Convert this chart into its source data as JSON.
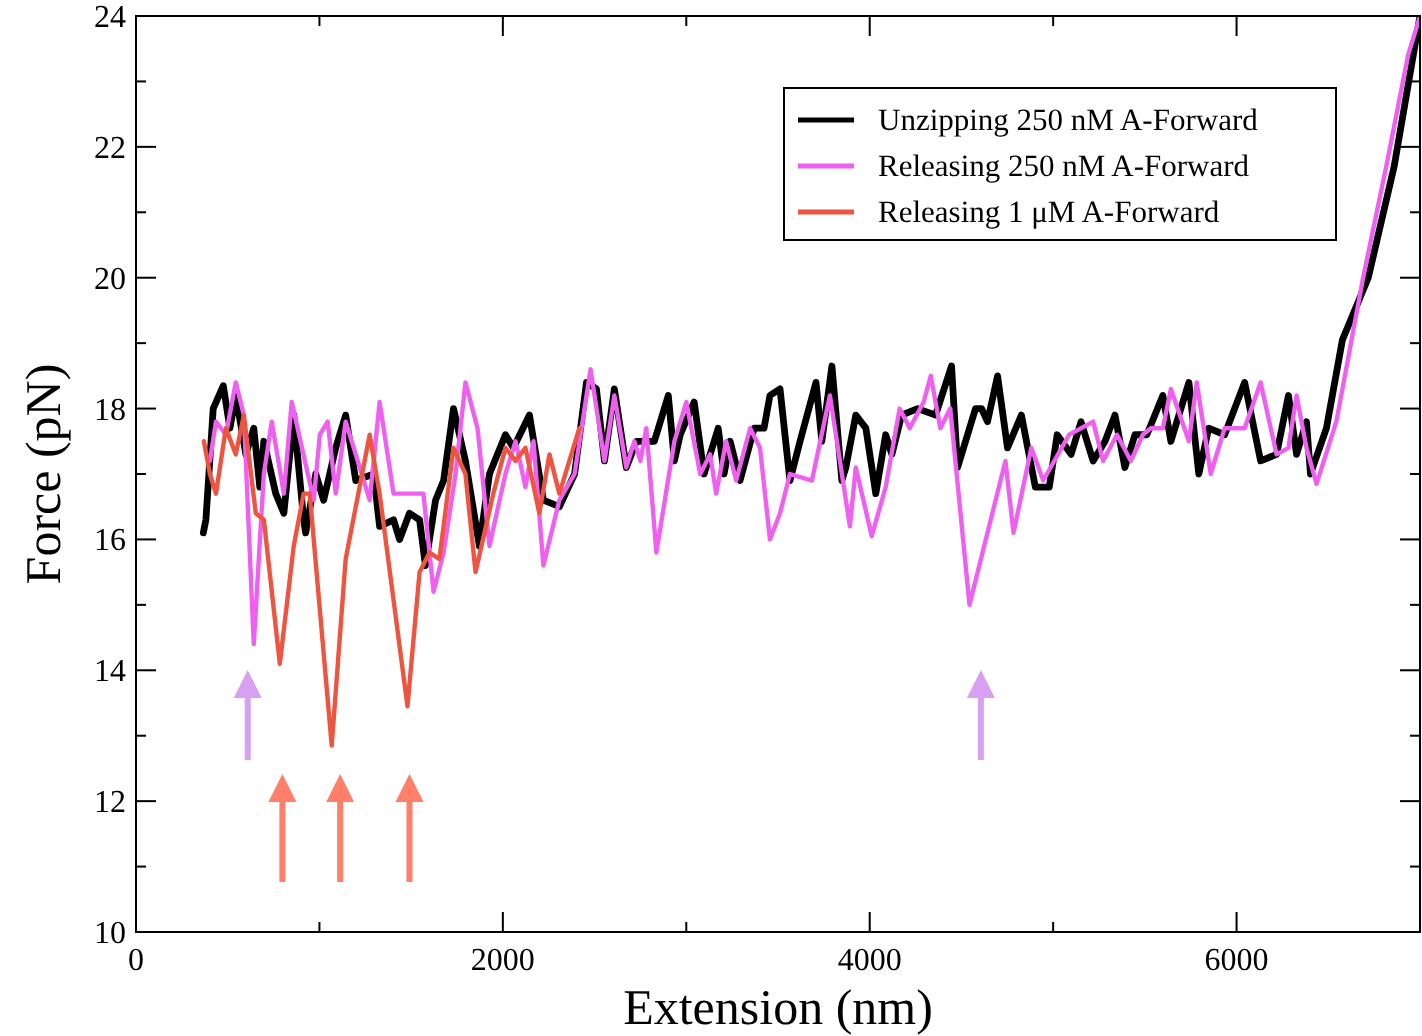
{
  "chart_data": {
    "type": "line",
    "xlabel": "Extension (nm)",
    "ylabel": "Force (pN)",
    "xlim": [
      0,
      7000
    ],
    "ylim": [
      10,
      24
    ],
    "xticks": [
      0,
      {
        "value": 1000,
        "label": null
      },
      2000,
      {
        "value": 3000,
        "label": null
      },
      4000,
      {
        "value": 5000,
        "label": null
      },
      6000
    ],
    "yticks": [
      10,
      {
        "value": 11,
        "label": null
      },
      12,
      {
        "value": 13,
        "label": null
      },
      14,
      {
        "value": 15,
        "label": null
      },
      16,
      {
        "value": 17,
        "label": null
      },
      18,
      {
        "value": 19,
        "label": null
      },
      20,
      {
        "value": 21,
        "label": null
      },
      22,
      {
        "value": 23,
        "label": null
      },
      24
    ],
    "legend": "top right",
    "grid": false,
    "marker": "none",
    "line_style": "solid",
    "series": [
      {
        "name": "Unzipping 250 nM A-Forward",
        "color": "#000000",
        "x": [
          367,
          381,
          421,
          476,
          512,
          544,
          599,
          642,
          675,
          697,
          762,
          806,
          860,
          914,
          925,
          980,
          1023,
          1089,
          1143,
          1198,
          1296,
          1328,
          1404,
          1437,
          1491,
          1546,
          1578,
          1633,
          1677,
          1731,
          1796,
          1872,
          1927,
          2014,
          2058,
          2145,
          2221,
          2308,
          2391,
          2456,
          2510,
          2554,
          2608,
          2673,
          2728,
          2782,
          2826,
          2902,
          2935,
          2967,
          3043,
          3097,
          3174,
          3206,
          3239,
          3293,
          3370,
          3424,
          3456,
          3511,
          3565,
          3620,
          3707,
          3739,
          3794,
          3848,
          3870,
          3924,
          3979,
          4033,
          4087,
          4121,
          4174,
          4261,
          4359,
          4446,
          4479,
          4577,
          4610,
          4642,
          4697,
          4751,
          4827,
          4903,
          4979,
          5022,
          5098,
          5152,
          5218,
          5283,
          5337,
          5391,
          5446,
          5511,
          5598,
          5642,
          5740,
          5794,
          5848,
          5935,
          6044,
          6131,
          6218,
          6283,
          6327,
          6381,
          6403,
          6490,
          6577,
          6718,
          6859,
          7000
        ],
        "values": [
          16.1,
          16.3,
          18.0,
          18.35,
          17.7,
          18.2,
          17.3,
          17.7,
          16.8,
          17.5,
          16.7,
          16.4,
          17.9,
          16.3,
          16.1,
          17.0,
          16.6,
          17.4,
          17.9,
          16.9,
          17.0,
          16.2,
          16.3,
          16.0,
          16.4,
          16.3,
          15.6,
          16.6,
          16.9,
          18.0,
          17.2,
          15.9,
          17.0,
          17.6,
          17.4,
          17.9,
          16.6,
          16.5,
          17.0,
          18.4,
          18.3,
          17.2,
          18.3,
          17.1,
          17.5,
          17.5,
          17.5,
          18.2,
          17.2,
          17.6,
          18.1,
          17.0,
          17.7,
          17.0,
          17.5,
          16.9,
          17.7,
          17.7,
          18.2,
          18.3,
          16.9,
          17.5,
          18.4,
          17.5,
          18.65,
          16.9,
          17.1,
          17.9,
          17.7,
          16.7,
          17.6,
          17.3,
          17.9,
          18.0,
          17.9,
          18.65,
          17.1,
          18.0,
          18.0,
          17.8,
          18.5,
          17.4,
          17.9,
          16.8,
          16.8,
          17.6,
          17.3,
          17.8,
          17.2,
          17.5,
          17.9,
          17.1,
          17.6,
          17.6,
          18.2,
          17.5,
          18.4,
          17.0,
          17.7,
          17.6,
          18.4,
          17.2,
          17.3,
          18.2,
          17.3,
          17.8,
          17.0,
          17.7,
          19.05,
          20.0,
          21.7,
          24.0
        ]
      },
      {
        "name": "Releasing 250 nM A-Forward",
        "color": "#f060f0",
        "x": [
          403,
          436,
          490,
          544,
          588,
          642,
          697,
          740,
          806,
          849,
          969,
          1002,
          1045,
          1089,
          1143,
          1198,
          1274,
          1328,
          1404,
          1459,
          1513,
          1567,
          1622,
          1677,
          1742,
          1796,
          1862,
          1927,
          2014,
          2069,
          2123,
          2167,
          2221,
          2308,
          2391,
          2478,
          2554,
          2608,
          2673,
          2717,
          2750,
          2782,
          2837,
          2935,
          3000,
          3076,
          3130,
          3163,
          3217,
          3272,
          3348,
          3402,
          3456,
          3511,
          3565,
          3685,
          3783,
          3892,
          3924,
          4011,
          4087,
          4163,
          4218,
          4294,
          4333,
          4385,
          4439,
          4544,
          4740,
          4784,
          4881,
          4946,
          5087,
          5218,
          5272,
          5348,
          5424,
          5489,
          5533,
          5598,
          5642,
          5740,
          5783,
          5859,
          5935,
          6044,
          6131,
          6218,
          6283,
          6327,
          6381,
          6436,
          6544,
          6690,
          6816,
          6935,
          7000
        ],
        "values": [
          17.2,
          17.8,
          17.6,
          18.4,
          17.9,
          14.4,
          17.0,
          17.8,
          16.7,
          18.1,
          16.6,
          17.6,
          17.8,
          16.7,
          17.8,
          17.3,
          16.6,
          18.1,
          16.7,
          16.7,
          16.7,
          16.7,
          15.2,
          15.8,
          17.0,
          18.4,
          17.7,
          15.9,
          17.0,
          17.5,
          16.8,
          17.5,
          15.6,
          16.6,
          17.0,
          18.6,
          17.2,
          18.2,
          17.1,
          17.5,
          17.2,
          17.7,
          15.8,
          17.5,
          18.1,
          17.0,
          17.3,
          16.7,
          17.5,
          16.9,
          17.7,
          17.4,
          16.0,
          16.4,
          17.0,
          16.9,
          18.2,
          16.2,
          17.1,
          16.05,
          16.8,
          18.0,
          17.7,
          18.1,
          18.5,
          17.7,
          18.0,
          15.0,
          17.2,
          16.1,
          17.4,
          16.9,
          17.6,
          17.8,
          17.2,
          17.6,
          17.2,
          17.6,
          17.7,
          17.7,
          18.3,
          17.5,
          18.4,
          17.0,
          17.7,
          17.7,
          18.4,
          17.3,
          17.4,
          18.2,
          17.4,
          16.85,
          17.8,
          20.0,
          21.7,
          23.4,
          24.0
        ]
      },
      {
        "name": "Releasing 1 μM A-Forward",
        "color": "#ee5540",
        "x": [
          370,
          403,
          436,
          490,
          544,
          588,
          653,
          697,
          784,
          860,
          914,
          947,
          1067,
          1143,
          1274,
          1328,
          1480,
          1546,
          1600,
          1654,
          1731,
          1796,
          1851,
          1948,
          2014,
          2069,
          2123,
          2199,
          2254,
          2308,
          2417
        ],
        "values": [
          17.5,
          17.0,
          16.7,
          17.7,
          17.3,
          17.9,
          16.4,
          16.3,
          14.1,
          15.9,
          16.7,
          16.7,
          12.85,
          15.7,
          17.6,
          16.7,
          13.45,
          15.5,
          15.8,
          15.7,
          17.4,
          17.0,
          15.5,
          16.7,
          17.4,
          17.2,
          17.4,
          16.4,
          17.3,
          16.7,
          17.7
        ]
      }
    ]
  }
}
